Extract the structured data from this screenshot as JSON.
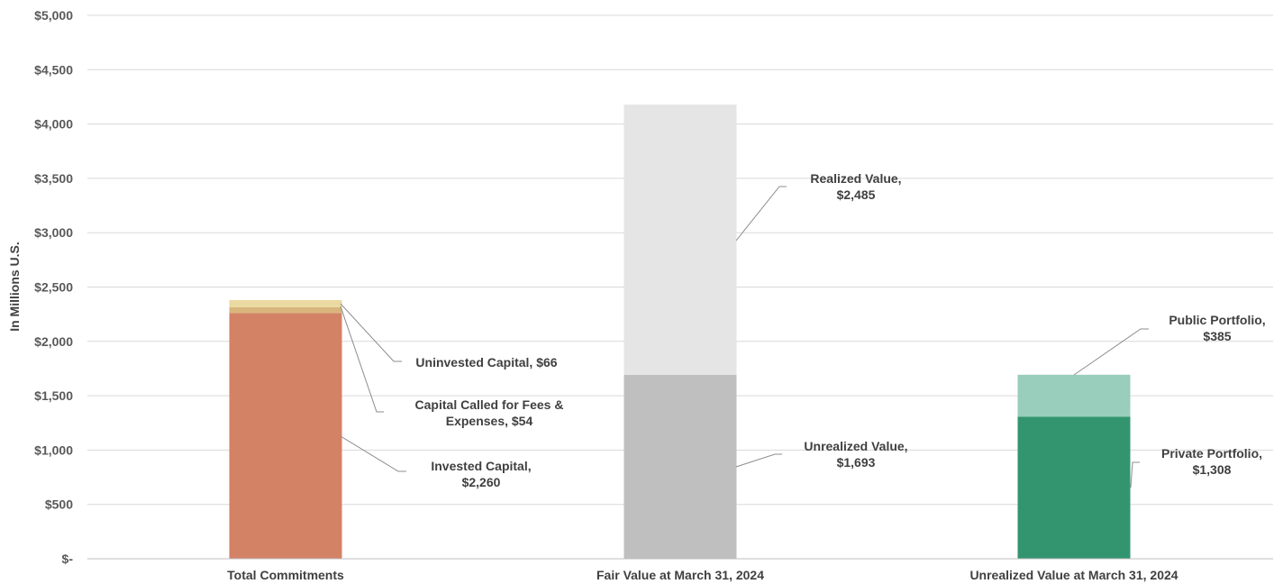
{
  "chart_data": {
    "type": "bar",
    "stacked": true,
    "ylabel": "In Millions U.S.",
    "ylim": [
      0,
      5000
    ],
    "ytick_step": 500,
    "ytick_labels": [
      "$-",
      "$500",
      "$1,000",
      "$1,500",
      "$2,000",
      "$2,500",
      "$3,000",
      "$3,500",
      "$4,000",
      "$4,500",
      "$5,000"
    ],
    "grid": true,
    "categories": [
      "Total Commitments",
      "Fair Value at March 31, 2024",
      "Unrealized Value at March 31, 2024"
    ],
    "bars": [
      {
        "category": "Total Commitments",
        "segments": [
          {
            "name": "Invested Capital",
            "value": 2260,
            "color": "#d38266",
            "label": [
              "Invested Capital,",
              "$2,260"
            ]
          },
          {
            "name": "Capital Called for Fees & Expenses",
            "value": 54,
            "color": "#d8b57c",
            "label": [
              "Capital Called for Fees &",
              "Expenses,  $54"
            ]
          },
          {
            "name": "Uninvested Capital",
            "value": 66,
            "color": "#ebd9a2",
            "label": [
              "Uninvested Capital,  $66"
            ]
          }
        ]
      },
      {
        "category": "Fair Value at March 31, 2024",
        "segments": [
          {
            "name": "Unrealized Value",
            "value": 1693,
            "color": "#bfbfbf",
            "label": [
              "Unrealized Value,",
              "$1,693"
            ]
          },
          {
            "name": "Realized Value",
            "value": 2485,
            "color": "#e6e5e6",
            "label": [
              "Realized Value,",
              "$2,485"
            ]
          }
        ]
      },
      {
        "category": "Unrealized Value at March 31, 2024",
        "segments": [
          {
            "name": "Private Portfolio",
            "value": 1308,
            "color": "#339570",
            "label": [
              "Private Portfolio,",
              "$1,308"
            ]
          },
          {
            "name": "Public Portfolio",
            "value": 385,
            "color": "#99cdbc",
            "label": [
              "Public Portfolio,",
              "$385"
            ]
          }
        ]
      }
    ]
  }
}
